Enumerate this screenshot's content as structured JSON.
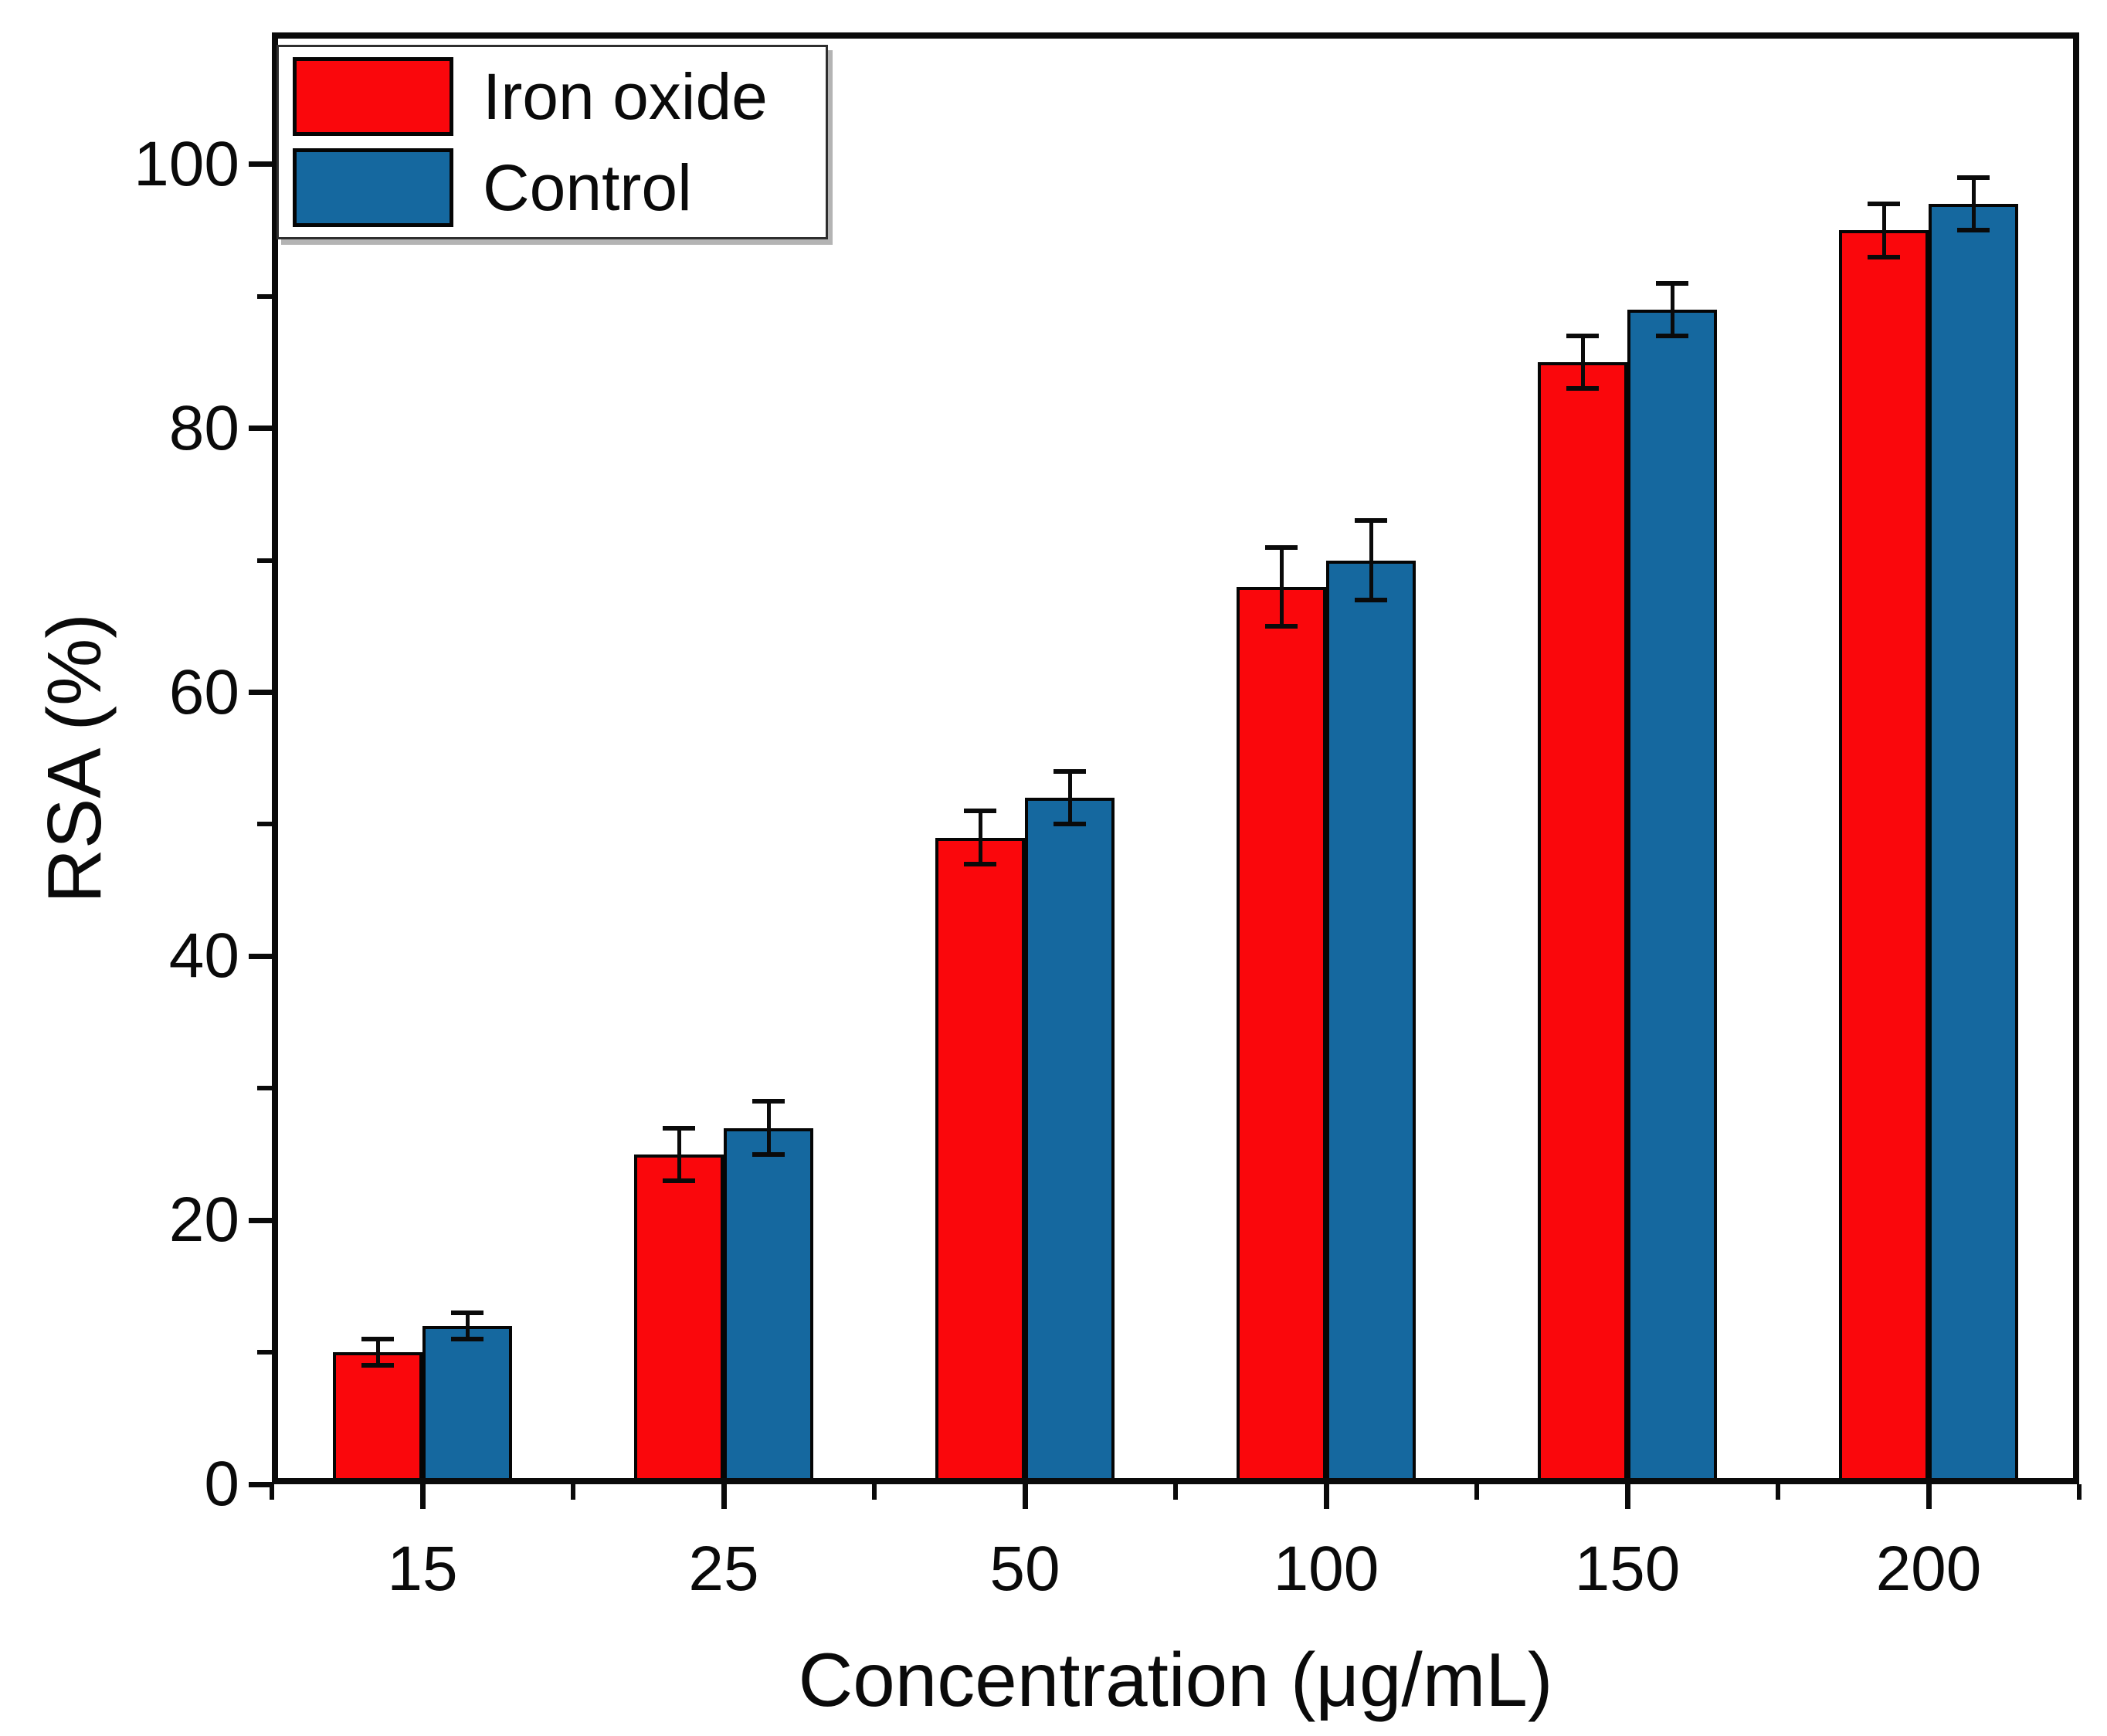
{
  "figure": {
    "background": "#ffffff"
  },
  "legend": {
    "position": "top-left",
    "items": [
      {
        "label": "Iron oxide",
        "color": "#fa070c"
      },
      {
        "label": "Control",
        "color": "#15689f"
      }
    ]
  },
  "chart_data": {
    "type": "bar",
    "title": "",
    "xlabel": "Concentration (μg/mL)",
    "ylabel": "RSA (%)",
    "categories": [
      "15",
      "25",
      "50",
      "100",
      "150",
      "200"
    ],
    "series": [
      {
        "name": "Iron oxide",
        "color": "#fa070c",
        "values": [
          10,
          25,
          49,
          68,
          85,
          95
        ],
        "errors": [
          1,
          2,
          2,
          3,
          2,
          2
        ]
      },
      {
        "name": "Control",
        "color": "#15689f",
        "values": [
          12,
          27,
          52,
          70,
          89,
          97
        ],
        "errors": [
          1,
          2,
          2,
          3,
          2,
          2
        ]
      }
    ],
    "ylim": [
      0,
      110
    ],
    "yticks": [
      0,
      20,
      40,
      60,
      80,
      100
    ],
    "yminor": [
      10,
      30,
      50,
      70,
      90
    ],
    "grid": false,
    "error_bars": true,
    "legend_position": "top-left",
    "axis_color": "#0a0a0a"
  }
}
